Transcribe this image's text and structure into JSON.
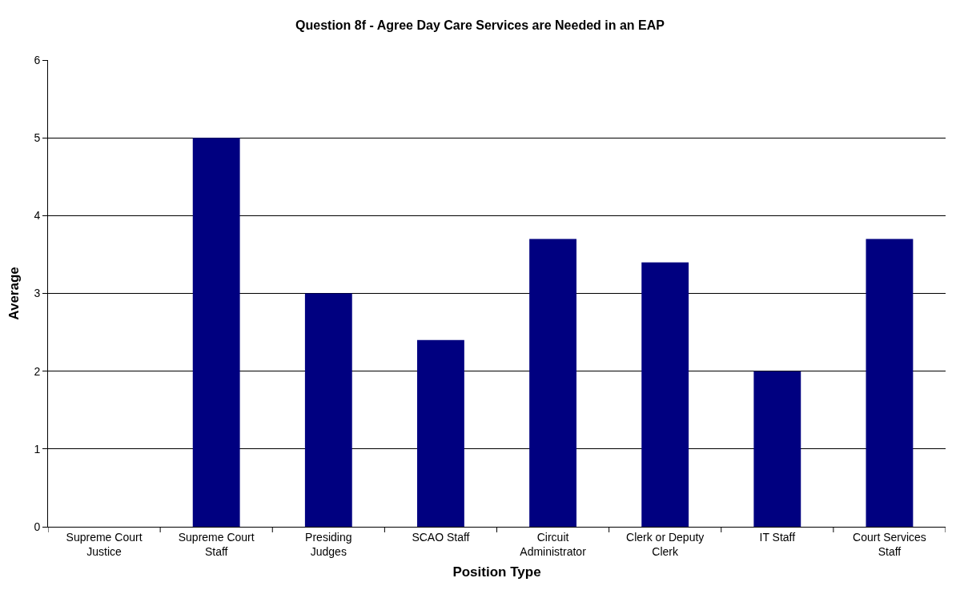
{
  "chart_data": {
    "type": "bar",
    "title": "Question 8f - Agree Day Care Services are Needed in an EAP",
    "xlabel": "Position Type",
    "ylabel": "Average",
    "categories": [
      "Supreme Court Justice",
      "Supreme Court Staff",
      "Presiding Judges",
      "SCAO Staff",
      "Circuit Administrator",
      "Clerk or Deputy Clerk",
      "IT Staff",
      "Court Services Staff"
    ],
    "values": [
      0,
      5,
      3,
      2.4,
      3.7,
      3.4,
      2,
      3.7
    ],
    "color": "#000080",
    "ylim": [
      0,
      6
    ],
    "yticks": [
      0,
      1,
      2,
      3,
      4,
      5,
      6
    ],
    "grid": "y"
  }
}
